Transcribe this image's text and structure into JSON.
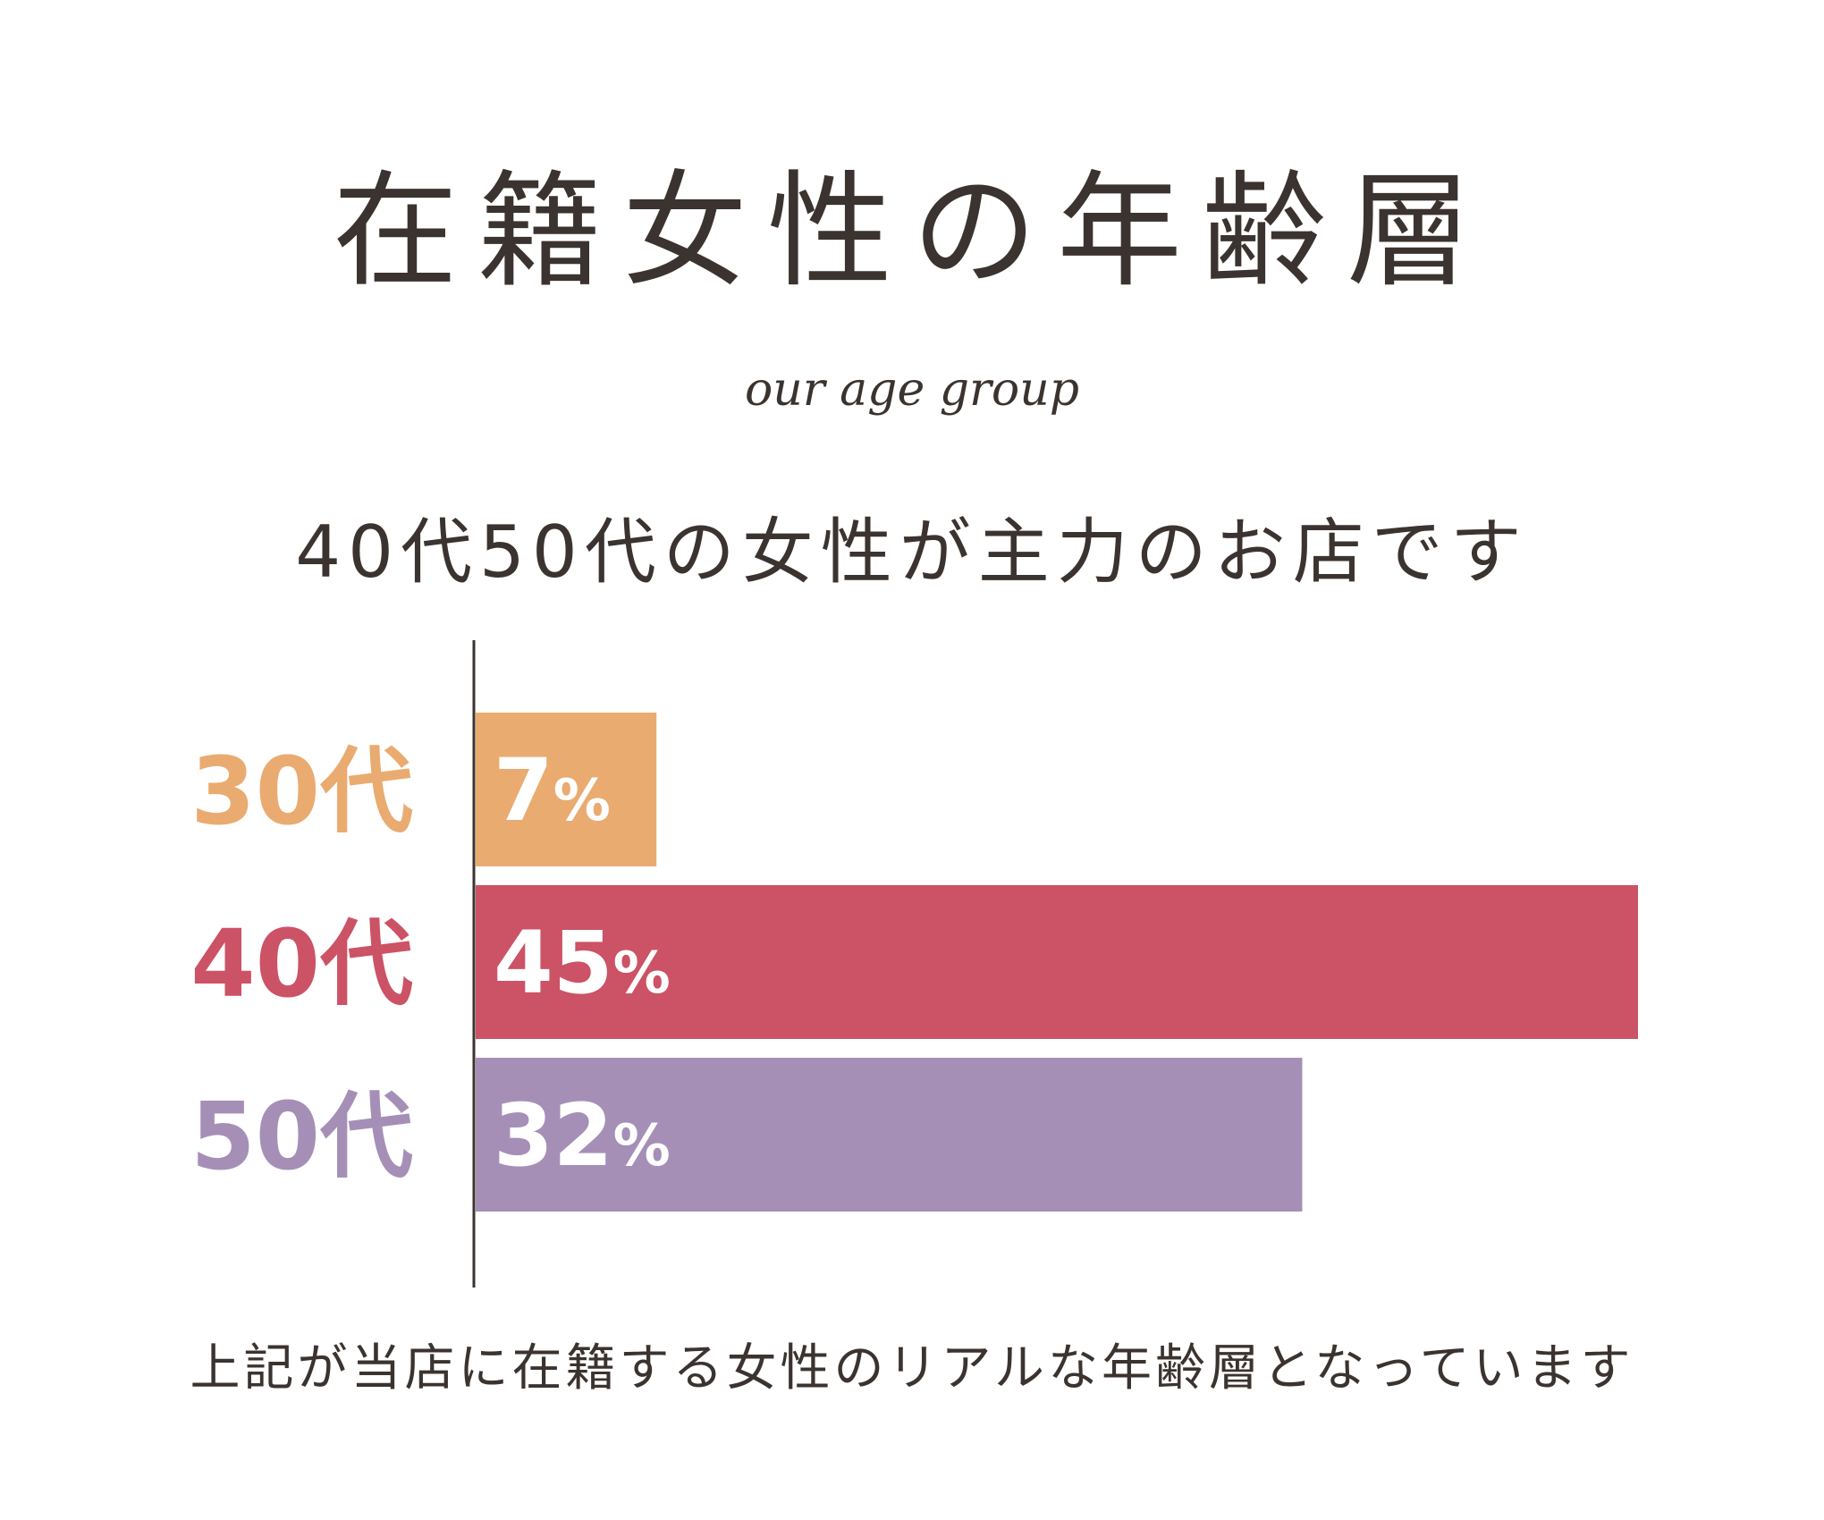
{
  "header": {
    "title": "在籍女性の年齢層",
    "subtitle": "our age group",
    "lead": "40代50代の女性が主力のお店です"
  },
  "footer": {
    "note": "上記が当店に在籍する女性のリアルな年齢層となっています"
  },
  "chart_data": {
    "type": "bar",
    "orientation": "horizontal",
    "categories": [
      "30代",
      "40代",
      "50代"
    ],
    "values": [
      7,
      45,
      32
    ],
    "value_suffix": "%",
    "colors": [
      "#EAAB70",
      "#CC5266",
      "#A58FB7"
    ],
    "xlim": [
      0,
      45
    ],
    "grid": false,
    "legend": "none"
  }
}
